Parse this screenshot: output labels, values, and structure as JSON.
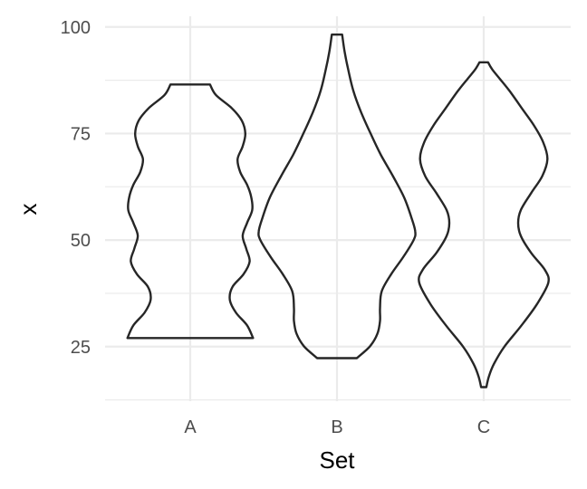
{
  "chart_data": {
    "type": "violin",
    "title": "",
    "xlabel": "Set",
    "ylabel": "x",
    "categories": [
      "A",
      "B",
      "C"
    ],
    "ylim": [
      12.2,
      102.5
    ],
    "y_ticks": [
      25,
      50,
      75,
      100
    ],
    "y_minor_ticks": [
      12.5,
      37.5,
      62.5,
      87.5
    ],
    "grid": true,
    "legend": "none",
    "colors": {
      "outline": "#262626",
      "grid": "#ebebeb",
      "fill": "none"
    },
    "series": [
      {
        "category": "A",
        "min": 27,
        "max": 86.5,
        "density": [
          [
            27,
            0.73
          ],
          [
            30,
            0.66
          ],
          [
            33,
            0.53
          ],
          [
            36,
            0.46
          ],
          [
            39,
            0.49
          ],
          [
            42,
            0.62
          ],
          [
            45,
            0.69
          ],
          [
            48,
            0.65
          ],
          [
            51,
            0.61
          ],
          [
            54,
            0.66
          ],
          [
            57,
            0.72
          ],
          [
            60,
            0.71
          ],
          [
            63,
            0.66
          ],
          [
            66,
            0.58
          ],
          [
            69,
            0.55
          ],
          [
            72,
            0.61
          ],
          [
            75,
            0.64
          ],
          [
            78,
            0.6
          ],
          [
            81,
            0.48
          ],
          [
            84,
            0.3
          ],
          [
            86.5,
            0.23
          ]
        ]
      },
      {
        "category": "B",
        "min": 22.3,
        "max": 98.2,
        "density": [
          [
            22.3,
            0.23
          ],
          [
            25,
            0.38
          ],
          [
            28,
            0.47
          ],
          [
            31,
            0.5
          ],
          [
            34,
            0.5
          ],
          [
            38,
            0.52
          ],
          [
            42,
            0.63
          ],
          [
            46,
            0.77
          ],
          [
            50,
            0.89
          ],
          [
            52,
            0.91
          ],
          [
            55,
            0.87
          ],
          [
            60,
            0.78
          ],
          [
            65,
            0.65
          ],
          [
            70,
            0.51
          ],
          [
            75,
            0.39
          ],
          [
            80,
            0.28
          ],
          [
            85,
            0.19
          ],
          [
            90,
            0.13
          ],
          [
            94,
            0.09
          ],
          [
            98.2,
            0.06
          ]
        ]
      },
      {
        "category": "C",
        "min": 15.5,
        "max": 91.7,
        "density": [
          [
            15.5,
            0.03
          ],
          [
            18,
            0.06
          ],
          [
            21,
            0.12
          ],
          [
            25,
            0.24
          ],
          [
            30,
            0.44
          ],
          [
            35,
            0.62
          ],
          [
            40,
            0.75
          ],
          [
            43,
            0.71
          ],
          [
            47,
            0.55
          ],
          [
            51,
            0.43
          ],
          [
            54,
            0.4
          ],
          [
            57,
            0.43
          ],
          [
            61,
            0.55
          ],
          [
            65,
            0.68
          ],
          [
            69,
            0.74
          ],
          [
            73,
            0.69
          ],
          [
            77,
            0.58
          ],
          [
            81,
            0.44
          ],
          [
            85,
            0.3
          ],
          [
            88,
            0.18
          ],
          [
            90,
            0.1
          ],
          [
            91.7,
            0.05
          ]
        ]
      }
    ]
  }
}
